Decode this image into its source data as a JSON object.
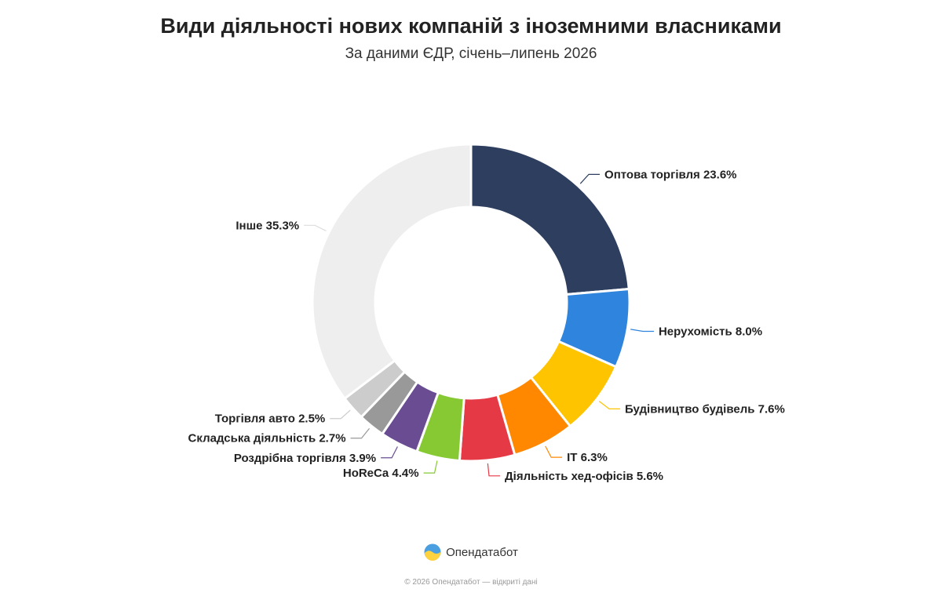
{
  "header": {
    "title": "Види діяльності нових компаній з іноземними власниками",
    "subtitle": "За даними ЄДР, січень–липень 2026"
  },
  "chart_data": {
    "type": "pie",
    "variant": "donut",
    "title": "Види діяльності нових компаній з іноземними власниками",
    "subtitle": "За даними ЄДР, січень–липень 2026",
    "unit": "%",
    "slices": [
      {
        "label": "Оптова торгівля",
        "value": 23.6,
        "color": "#2d3e5f",
        "display": "Оптова торгівля 23.6%"
      },
      {
        "label": "Нерухомість",
        "value": 8.0,
        "color": "#2f84dd",
        "display": "Нерухомість 8.0%"
      },
      {
        "label": "Будівництво будівель",
        "value": 7.6,
        "color": "#ffc400",
        "display": "Будівництво будівель 7.6%"
      },
      {
        "label": "IT",
        "value": 6.3,
        "color": "#ff8800",
        "display": "IT 6.3%"
      },
      {
        "label": "Діяльність хед-офісів",
        "value": 5.6,
        "color": "#e63946",
        "display": "Діяльність хед-офісів 5.6%"
      },
      {
        "label": "HoReCa",
        "value": 4.4,
        "color": "#86c932",
        "display": "HoReCa 4.4%"
      },
      {
        "label": "Роздрібна торгівля",
        "value": 3.9,
        "color": "#6a4c93",
        "display": "Роздрібна торгівля 3.9%"
      },
      {
        "label": "Складська діяльність",
        "value": 2.7,
        "color": "#999999",
        "display": "Складська діяльність 2.7%"
      },
      {
        "label": "Торгівля авто",
        "value": 2.5,
        "color": "#cccccc",
        "display": "Торгівля авто 2.5%"
      },
      {
        "label": "Інше",
        "value": 35.3,
        "color": "#eeeeee",
        "display": "Інше 35.3%"
      }
    ]
  },
  "footer": {
    "brand_name": "Опендатабот",
    "copyright": "© 2026 Опендатабот — відкриті дані"
  }
}
